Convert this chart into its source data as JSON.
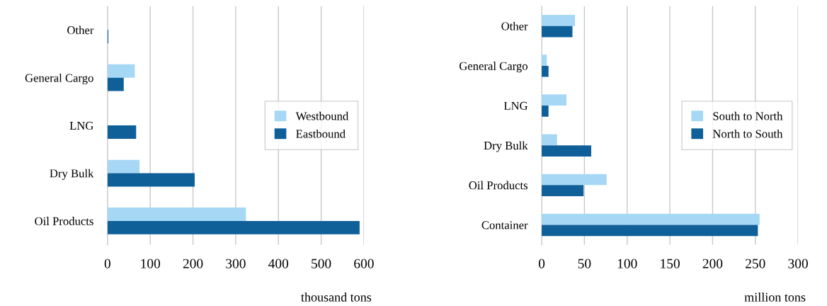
{
  "chart_data": [
    {
      "type": "bar",
      "orientation": "horizontal",
      "xlabel": "thousand tons",
      "categories": [
        "Other",
        "General Cargo",
        "LNG",
        "Dry Bulk",
        "Oil Products"
      ],
      "series": [
        {
          "name": "Westbound",
          "color": "#a6d8f5",
          "values": [
            0,
            64,
            0,
            75,
            324
          ]
        },
        {
          "name": "Eastbound",
          "color": "#0f5f99",
          "values": [
            2,
            38,
            67,
            204,
            590
          ]
        }
      ],
      "xlim": [
        0,
        600
      ],
      "xticks": [
        0,
        100,
        200,
        300,
        400,
        500,
        600
      ],
      "grid": "x",
      "legend": "right"
    },
    {
      "type": "bar",
      "orientation": "horizontal",
      "xlabel": "million tons",
      "categories": [
        "Other",
        "General Cargo",
        "LNG",
        "Dry Bulk",
        "Oil Products",
        "Container"
      ],
      "series": [
        {
          "name": "South to North",
          "color": "#a6d8f5",
          "values": [
            39,
            6,
            29,
            18,
            76,
            255
          ]
        },
        {
          "name": "North to South",
          "color": "#0f5f99",
          "values": [
            36,
            8,
            8,
            58,
            49,
            253
          ]
        }
      ],
      "xlim": [
        0,
        300
      ],
      "xticks": [
        0,
        50,
        100,
        150,
        200,
        250,
        300
      ],
      "grid": "x",
      "legend": "right"
    }
  ]
}
